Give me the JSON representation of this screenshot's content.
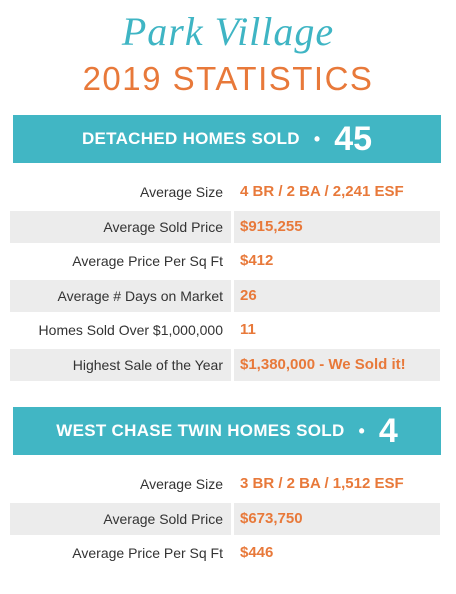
{
  "header": {
    "title": "Park Village",
    "subtitle": "2019 STATISTICS"
  },
  "separator": "•",
  "sections": [
    {
      "title": "DETACHED HOMES SOLD",
      "count": 45,
      "rows": [
        {
          "label": "Average Size",
          "value": "4 BR / 2 BA / 2,241 ESF"
        },
        {
          "label": "Average Sold Price",
          "value": "$915,255"
        },
        {
          "label": "Average Price Per Sq Ft",
          "value": "$412"
        },
        {
          "label": "Average # Days on Market",
          "value": "26"
        },
        {
          "label": "Homes Sold Over $1,000,000",
          "value": "11"
        },
        {
          "label": "Highest Sale of the Year",
          "value": "$1,380,000 - We Sold it!"
        }
      ]
    },
    {
      "title": "WEST CHASE TWIN HOMES SOLD",
      "count": 4,
      "rows": [
        {
          "label": "Average Size",
          "value": "3 BR / 2 BA / 1,512 ESF"
        },
        {
          "label": "Average Sold Price",
          "value": "$673,750"
        },
        {
          "label": "Average Price Per Sq Ft",
          "value": "$446"
        }
      ]
    }
  ]
}
